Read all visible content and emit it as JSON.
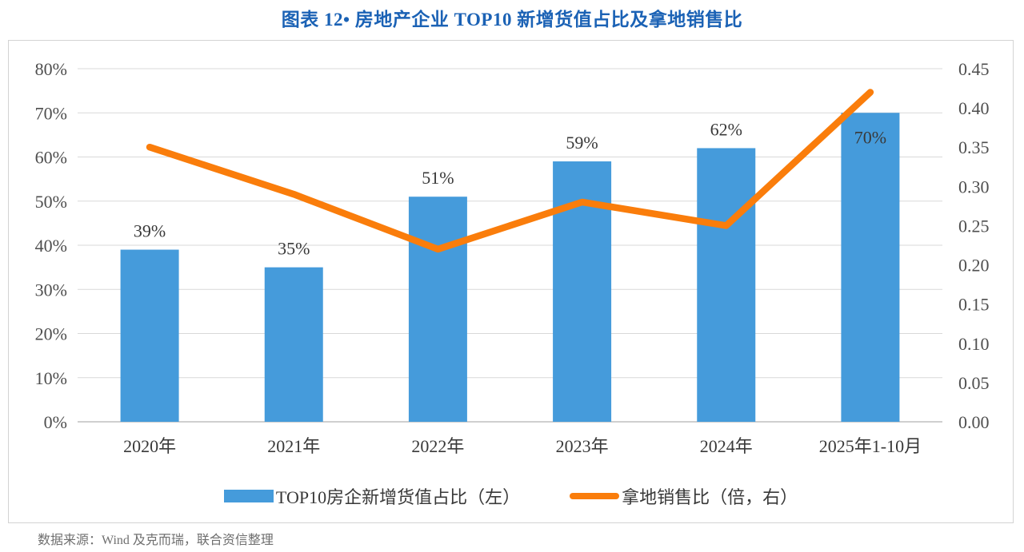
{
  "title": "图表 12• 房地产企业 TOP10 新增货值占比及拿地销售比",
  "source": "数据来源：Wind 及克而瑞，联合资信整理",
  "colors": {
    "title": "#1b62b5",
    "bar": "#459bdb",
    "line": "#fa7d0b",
    "gridline": "#d9d9d9",
    "baseline": "#bfbfbf",
    "axis_text": "#4e4e4e",
    "label_text": "#393939"
  },
  "chart_data": {
    "type": "bar",
    "subtype": "bar-line combo, dual axis",
    "title": "图表 12• 房地产企业 TOP10 新增货值占比及拿地销售比",
    "categories": [
      "2020年",
      "2021年",
      "2022年",
      "2023年",
      "2024年",
      "2025年1-10月"
    ],
    "series": [
      {
        "name": "TOP10房企新增货值占比（左）",
        "type": "bar",
        "axis": "left",
        "values": [
          39,
          35,
          51,
          59,
          62,
          70
        ],
        "labels": [
          "39%",
          "35%",
          "51%",
          "59%",
          "62%",
          "70%"
        ],
        "label_placement": [
          "above",
          "above",
          "above",
          "above",
          "above",
          "inside"
        ]
      },
      {
        "name": "拿地销售比（倍，右）",
        "type": "line",
        "axis": "right",
        "values": [
          0.35,
          0.29,
          0.22,
          0.28,
          0.25,
          0.42
        ]
      }
    ],
    "left_axis": {
      "min": 0,
      "max": 80,
      "step": 10,
      "tick_labels": [
        "0%",
        "10%",
        "20%",
        "30%",
        "40%",
        "50%",
        "60%",
        "70%",
        "80%"
      ]
    },
    "right_axis": {
      "min": 0,
      "max": 0.45,
      "step": 0.05,
      "tick_labels": [
        "0.00",
        "0.05",
        "0.10",
        "0.15",
        "0.20",
        "0.25",
        "0.30",
        "0.35",
        "0.40",
        "0.45"
      ]
    },
    "grid": true,
    "legend_position": "bottom"
  }
}
